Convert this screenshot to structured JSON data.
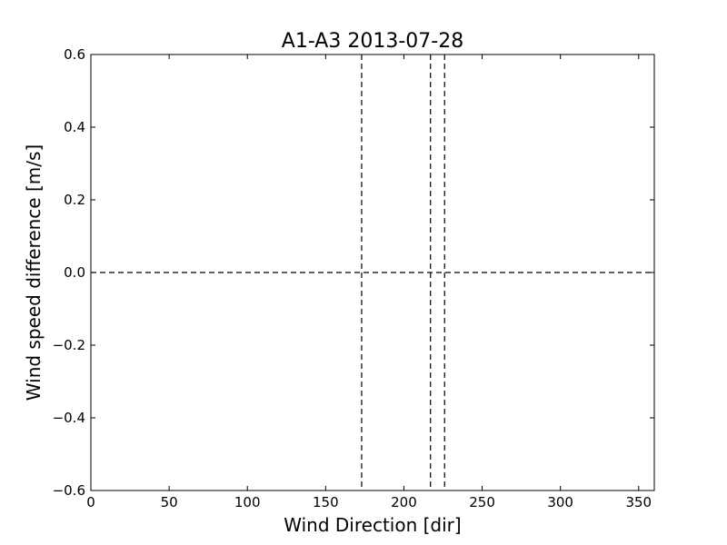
{
  "chart_data": {
    "type": "line",
    "title": "A1-A3 2013-07-28",
    "xlabel": "Wind Direction [dir]",
    "ylabel": "Wind speed difference [m/s]",
    "xlim": [
      0,
      360
    ],
    "ylim": [
      -0.6,
      0.6
    ],
    "xticks": [
      0,
      50,
      100,
      150,
      200,
      250,
      300,
      350
    ],
    "yticks": [
      -0.6,
      -0.4,
      -0.2,
      0.0,
      0.2,
      0.4,
      0.6
    ],
    "xtick_labels": [
      "0",
      "50",
      "100",
      "150",
      "200",
      "250",
      "300",
      "350"
    ],
    "ytick_labels": [
      "−0.6",
      "−0.4",
      "−0.2",
      "0.0",
      "0.2",
      "0.4",
      "0.6"
    ],
    "grid": false,
    "series": [],
    "reference_lines": {
      "horizontal": [
        0.0
      ],
      "vertical": [
        173,
        217,
        226
      ]
    },
    "line_style": "dashed",
    "line_color": "#000000"
  }
}
